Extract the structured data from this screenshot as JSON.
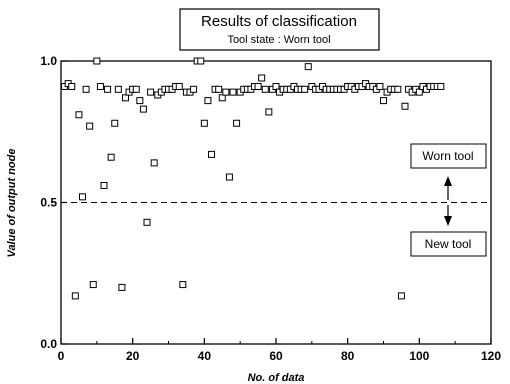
{
  "chart_data": {
    "type": "scatter",
    "title": "Results of classification",
    "subtitle": "Tool state : Worn tool",
    "xlabel": "No. of data",
    "ylabel": "Value of output node",
    "xlim": [
      0,
      120
    ],
    "ylim": [
      0.0,
      1.0
    ],
    "x_ticks": [
      0,
      20,
      40,
      60,
      80,
      100,
      120
    ],
    "y_ticks": [
      "0.0",
      "0.5",
      "1.0"
    ],
    "threshold": 0.5,
    "annotations": {
      "upper": "Worn tool",
      "lower": "New tool"
    },
    "grid": false,
    "legend": "none",
    "marker": "open-square",
    "points": [
      [
        1,
        0.91
      ],
      [
        2,
        0.92
      ],
      [
        3,
        0.91
      ],
      [
        4,
        0.17
      ],
      [
        5,
        0.81
      ],
      [
        6,
        0.52
      ],
      [
        7,
        0.9
      ],
      [
        8,
        0.77
      ],
      [
        9,
        0.21
      ],
      [
        10,
        1.0
      ],
      [
        11,
        0.91
      ],
      [
        12,
        0.56
      ],
      [
        13,
        0.9
      ],
      [
        14,
        0.66
      ],
      [
        15,
        0.78
      ],
      [
        16,
        0.9
      ],
      [
        17,
        0.2
      ],
      [
        18,
        0.87
      ],
      [
        19,
        0.89
      ],
      [
        20,
        0.9
      ],
      [
        21,
        0.9
      ],
      [
        22,
        0.86
      ],
      [
        23,
        0.83
      ],
      [
        24,
        0.43
      ],
      [
        25,
        0.89
      ],
      [
        26,
        0.64
      ],
      [
        27,
        0.88
      ],
      [
        28,
        0.89
      ],
      [
        29,
        0.9
      ],
      [
        30,
        0.9
      ],
      [
        31,
        0.9
      ],
      [
        32,
        0.91
      ],
      [
        33,
        0.91
      ],
      [
        34,
        0.21
      ],
      [
        35,
        0.89
      ],
      [
        36,
        0.89
      ],
      [
        37,
        0.9
      ],
      [
        38,
        1.0
      ],
      [
        39,
        1.0
      ],
      [
        40,
        0.78
      ],
      [
        41,
        0.86
      ],
      [
        42,
        0.67
      ],
      [
        43,
        0.9
      ],
      [
        44,
        0.9
      ],
      [
        45,
        0.87
      ],
      [
        46,
        0.89
      ],
      [
        47,
        0.59
      ],
      [
        48,
        0.89
      ],
      [
        49,
        0.78
      ],
      [
        50,
        0.89
      ],
      [
        51,
        0.9
      ],
      [
        52,
        0.9
      ],
      [
        53,
        0.9
      ],
      [
        54,
        0.91
      ],
      [
        55,
        0.91
      ],
      [
        56,
        0.94
      ],
      [
        57,
        0.9
      ],
      [
        58,
        0.82
      ],
      [
        59,
        0.9
      ],
      [
        60,
        0.91
      ],
      [
        61,
        0.89
      ],
      [
        62,
        0.9
      ],
      [
        63,
        0.9
      ],
      [
        64,
        0.9
      ],
      [
        65,
        0.91
      ],
      [
        66,
        0.9
      ],
      [
        67,
        0.9
      ],
      [
        68,
        0.9
      ],
      [
        69,
        0.98
      ],
      [
        70,
        0.91
      ],
      [
        71,
        0.9
      ],
      [
        72,
        0.9
      ],
      [
        73,
        0.91
      ],
      [
        74,
        0.9
      ],
      [
        75,
        0.9
      ],
      [
        76,
        0.9
      ],
      [
        77,
        0.9
      ],
      [
        78,
        0.9
      ],
      [
        79,
        0.9
      ],
      [
        80,
        0.91
      ],
      [
        81,
        0.91
      ],
      [
        82,
        0.9
      ],
      [
        83,
        0.91
      ],
      [
        84,
        0.91
      ],
      [
        85,
        0.92
      ],
      [
        86,
        0.91
      ],
      [
        87,
        0.91
      ],
      [
        88,
        0.9
      ],
      [
        89,
        0.91
      ],
      [
        90,
        0.86
      ],
      [
        91,
        0.89
      ],
      [
        92,
        0.9
      ],
      [
        93,
        0.9
      ],
      [
        94,
        0.9
      ],
      [
        95,
        0.17
      ],
      [
        96,
        0.84
      ],
      [
        97,
        0.9
      ],
      [
        98,
        0.89
      ],
      [
        99,
        0.9
      ],
      [
        100,
        0.89
      ],
      [
        101,
        0.91
      ],
      [
        102,
        0.9
      ],
      [
        103,
        0.91
      ],
      [
        104,
        0.91
      ],
      [
        105,
        0.91
      ],
      [
        106,
        0.91
      ]
    ]
  }
}
